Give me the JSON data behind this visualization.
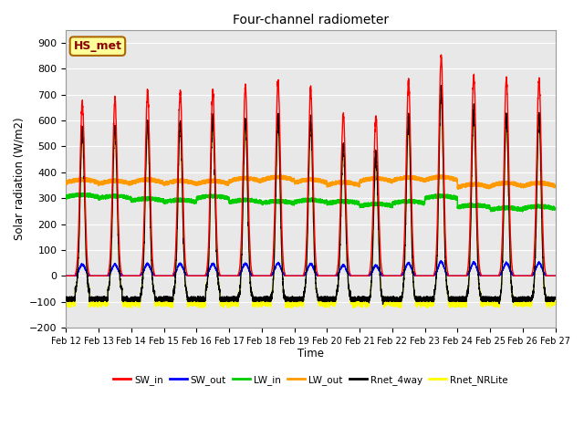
{
  "title": "Four-channel radiometer",
  "xlabel": "Time",
  "ylabel": "Solar radiation (W/m2)",
  "annotation": "HS_met",
  "ylim": [
    -200,
    950
  ],
  "yticks": [
    -200,
    -100,
    0,
    100,
    200,
    300,
    400,
    500,
    600,
    700,
    800,
    900
  ],
  "x_labels": [
    "Feb 12",
    "Feb 13",
    "Feb 14",
    "Feb 15",
    "Feb 16",
    "Feb 17",
    "Feb 18",
    "Feb 19",
    "Feb 20",
    "Feb 21",
    "Feb 22",
    "Feb 23",
    "Feb 24",
    "Feb 25",
    "Feb 26",
    "Feb 27"
  ],
  "n_days": 15,
  "plot_bg_color": "#e8e8e8",
  "colors": {
    "SW_in": "#ff0000",
    "SW_out": "#0000ff",
    "LW_in": "#00cc00",
    "LW_out": "#ff9900",
    "Rnet_4way": "#000000",
    "Rnet_NRLite": "#ffff00"
  },
  "legend_labels": [
    "SW_in",
    "SW_out",
    "LW_in",
    "LW_out",
    "Rnet_4way",
    "Rnet_NRLite"
  ],
  "SW_in_peaks": [
    670,
    680,
    710,
    710,
    710,
    730,
    750,
    720,
    620,
    610,
    750,
    845,
    775,
    760,
    760
  ],
  "LW_in_base": [
    305,
    300,
    290,
    285,
    300,
    285,
    280,
    285,
    280,
    270,
    280,
    300,
    265,
    255,
    260
  ],
  "LW_out_base": [
    360,
    355,
    360,
    355,
    355,
    365,
    370,
    360,
    350,
    365,
    368,
    370,
    342,
    347,
    347
  ]
}
